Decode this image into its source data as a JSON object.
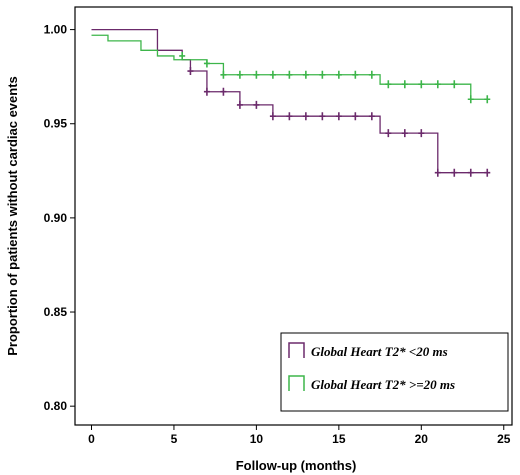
{
  "chart_data": {
    "type": "line",
    "xlabel": "Follow-up (months)",
    "ylabel": "Proportion of patients without cardiac events",
    "xlim": [
      -1,
      25.5
    ],
    "ylim": [
      0.79,
      1.012
    ],
    "xticks": [
      0,
      5,
      10,
      15,
      20,
      25
    ],
    "xtick_labels": [
      "0",
      "5",
      "10",
      "15",
      "20",
      "25"
    ],
    "yticks": [
      0.8,
      0.85,
      0.9,
      0.95,
      1.0
    ],
    "ytick_labels": [
      "0.80",
      "0.85",
      "0.90",
      "0.95",
      "1.00"
    ],
    "grid": false,
    "legend_position": "bottom-right",
    "series": [
      {
        "name": "Global Heart T2* <20 ms",
        "color": "#6b2a6b",
        "steps": [
          [
            0,
            1.0
          ],
          [
            4,
            0.989
          ],
          [
            5.5,
            0.984
          ],
          [
            6,
            0.978
          ],
          [
            7,
            0.967
          ],
          [
            9,
            0.96
          ],
          [
            11,
            0.954
          ],
          [
            17.5,
            0.945
          ],
          [
            21,
            0.924
          ],
          [
            24,
            0.924
          ]
        ],
        "censored": [
          [
            6,
            0.978
          ],
          [
            7,
            0.967
          ],
          [
            8,
            0.967
          ],
          [
            9,
            0.96
          ],
          [
            10,
            0.96
          ],
          [
            11,
            0.954
          ],
          [
            12,
            0.954
          ],
          [
            13,
            0.954
          ],
          [
            14,
            0.954
          ],
          [
            15,
            0.954
          ],
          [
            16,
            0.954
          ],
          [
            17,
            0.954
          ],
          [
            18,
            0.945
          ],
          [
            19,
            0.945
          ],
          [
            20,
            0.945
          ],
          [
            21,
            0.924
          ],
          [
            22,
            0.924
          ],
          [
            23,
            0.924
          ],
          [
            24,
            0.924
          ]
        ]
      },
      {
        "name": "Global Heart T2* >=20 ms",
        "color": "#3db54a",
        "steps": [
          [
            0,
            0.997
          ],
          [
            1,
            0.994
          ],
          [
            3,
            0.989
          ],
          [
            4,
            0.986
          ],
          [
            5,
            0.984
          ],
          [
            7,
            0.982
          ],
          [
            8,
            0.976
          ],
          [
            17.5,
            0.971
          ],
          [
            23,
            0.963
          ],
          [
            24,
            0.963
          ]
        ],
        "censored": [
          [
            5.5,
            0.986
          ],
          [
            7,
            0.982
          ],
          [
            8,
            0.976
          ],
          [
            9,
            0.976
          ],
          [
            10,
            0.976
          ],
          [
            11,
            0.976
          ],
          [
            12,
            0.976
          ],
          [
            13,
            0.976
          ],
          [
            14,
            0.976
          ],
          [
            15,
            0.976
          ],
          [
            16,
            0.976
          ],
          [
            17,
            0.976
          ],
          [
            18,
            0.971
          ],
          [
            19,
            0.971
          ],
          [
            20,
            0.971
          ],
          [
            21,
            0.971
          ],
          [
            22,
            0.971
          ],
          [
            23,
            0.963
          ],
          [
            24,
            0.963
          ]
        ]
      }
    ]
  },
  "legend": {
    "items": [
      {
        "label": "Global Heart T2* <20 ms",
        "color": "#6b2a6b"
      },
      {
        "label": "Global Heart T2* >=20 ms",
        "color": "#3db54a"
      }
    ]
  }
}
